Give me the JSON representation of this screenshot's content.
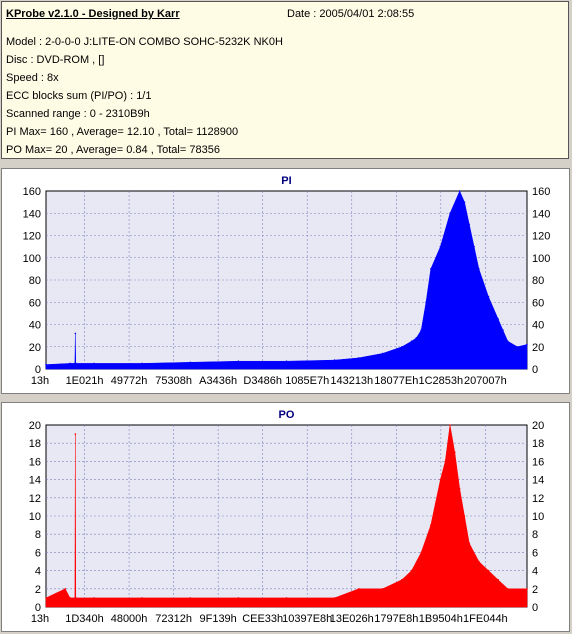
{
  "info": {
    "app_title": "KProbe v2.1.0 - Designed by Karr",
    "date": "Date : 2005/04/01 2:08:55",
    "lines": [
      "Model : 2-0-0-0 J:LITE-ON COMBO SOHC-5232K NK0H",
      "Disc : DVD-ROM ,  []",
      "Speed : 8x",
      "ECC blocks sum (PI/PO) : 1/1",
      "Scanned range : 0 - 2310B9h",
      "PI Max= 160 , Average= 12.10 , Total= 1128900",
      "PO Max= 20 , Average= 0.84 , Total= 78356"
    ]
  },
  "colors": {
    "pi": "#0000ff",
    "po": "#ff0000",
    "plot_bg": "#e8e8f4",
    "title": "#00007f"
  },
  "chart_data": [
    {
      "type": "area",
      "title": "PI",
      "ylim": [
        0,
        160
      ],
      "yticks": [
        0,
        20,
        40,
        60,
        80,
        100,
        120,
        140,
        160
      ],
      "xlim": [
        0,
        1
      ],
      "xtick_labels": [
        "13h",
        "1E021h",
        "49772h",
        "75308h",
        "A3436h",
        "D3486h",
        "1085E7h",
        "143213h",
        "18077Eh",
        "1C2853h",
        "207007h"
      ],
      "grid": true,
      "series": [
        {
          "x": [
            0,
            0.05,
            0.06,
            0.061,
            0.062,
            0.1,
            0.2,
            0.3,
            0.4,
            0.5,
            0.6,
            0.65,
            0.7,
            0.74,
            0.76,
            0.77,
            0.78,
            0.79,
            0.8,
            0.82,
            0.84,
            0.86,
            0.87,
            0.88,
            0.89,
            0.9,
            0.92,
            0.94,
            0.95,
            0.96,
            0.98,
            1.0
          ],
          "y": [
            4,
            5,
            5,
            32,
            5,
            5,
            5,
            6,
            7,
            7,
            8,
            10,
            14,
            20,
            25,
            28,
            35,
            60,
            90,
            110,
            140,
            160,
            150,
            130,
            110,
            90,
            65,
            45,
            35,
            25,
            20,
            22
          ]
        }
      ]
    },
    {
      "type": "bar",
      "title": "PO",
      "ylim": [
        0,
        20
      ],
      "yticks": [
        0,
        2,
        4,
        6,
        8,
        10,
        12,
        14,
        16,
        18,
        20
      ],
      "xlim": [
        0,
        1
      ],
      "xtick_labels": [
        "13h",
        "1D340h",
        "48000h",
        "72312h",
        "9F139h",
        "CEE33h",
        "10397E8h",
        "13E026h",
        "1797E8h",
        "1B9504h",
        "1FE044h"
      ],
      "grid": true,
      "series": [
        {
          "x": [
            0,
            0.04,
            0.05,
            0.06,
            0.061,
            0.062,
            0.1,
            0.2,
            0.3,
            0.4,
            0.5,
            0.6,
            0.65,
            0.7,
            0.74,
            0.76,
            0.78,
            0.8,
            0.82,
            0.83,
            0.84,
            0.85,
            0.86,
            0.87,
            0.88,
            0.9,
            0.92,
            0.94,
            0.96,
            1.0
          ],
          "y": [
            1,
            2,
            1,
            1,
            19,
            1,
            1,
            1,
            1,
            1,
            1,
            1,
            2,
            2,
            3,
            4,
            6,
            9,
            14,
            16,
            20,
            17,
            13,
            10,
            7,
            5,
            4,
            3,
            2,
            2
          ]
        }
      ]
    }
  ]
}
